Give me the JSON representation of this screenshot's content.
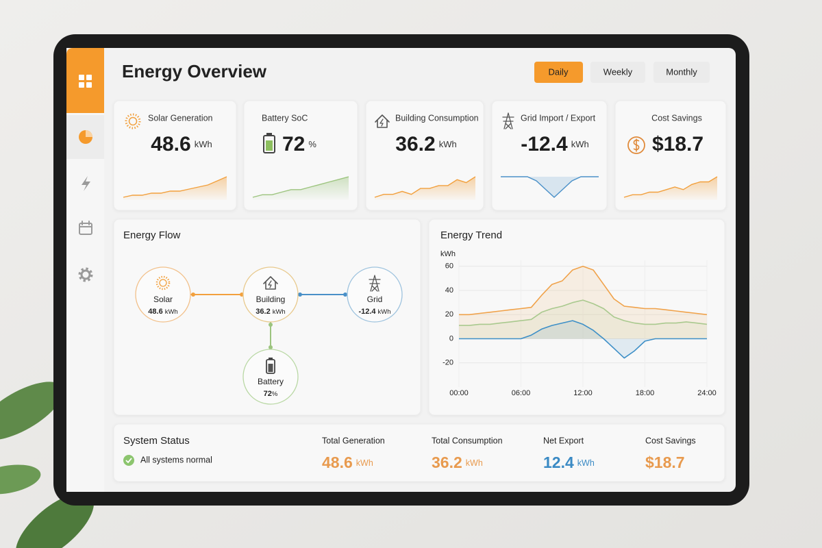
{
  "header": {
    "title": "Energy Overview",
    "tabs": [
      {
        "label": "Daily",
        "active": true
      },
      {
        "label": "Weekly",
        "active": false
      },
      {
        "label": "Monthly",
        "active": false
      }
    ]
  },
  "cards": [
    {
      "title": "Solar Generation",
      "value": "48.6",
      "unit": "kWh",
      "color": "#f2a03d",
      "trend": [
        3,
        4,
        4,
        5,
        5,
        6,
        6,
        7,
        8,
        9,
        11,
        13
      ]
    },
    {
      "title": "Battery SoC",
      "value": "72",
      "unit": "%",
      "color": "#9cc47e",
      "trend": [
        2,
        3,
        3,
        4,
        5,
        5,
        6,
        7,
        8,
        9,
        10
      ]
    },
    {
      "title": "Building Consumption",
      "value": "36.2",
      "unit": "kWh",
      "color": "#f2a03d",
      "trend": [
        2,
        3,
        3,
        4,
        3,
        5,
        5,
        6,
        6,
        8,
        7,
        9
      ]
    },
    {
      "title": "Grid Import / Export",
      "value": "-12.4",
      "unit": "kWh",
      "color": "#4a90c8",
      "trend": [
        0,
        0,
        0,
        0,
        -1,
        -3,
        -5,
        -3,
        -1,
        0,
        0,
        0
      ]
    },
    {
      "title": "Cost Savings",
      "value": "$18.7",
      "color": "#f2a03d",
      "trend": [
        2,
        3,
        3,
        4,
        4,
        5,
        6,
        5,
        7,
        8,
        8,
        10
      ]
    }
  ],
  "energy_flow": {
    "title": "Energy Flow",
    "nodes": [
      {
        "label": "Solar",
        "value": "48.6",
        "unit": "kWh",
        "color": "#f2c08a"
      },
      {
        "label": "Building",
        "value": "36.2",
        "unit": "kWh",
        "color": "#e8c98c"
      },
      {
        "label": "Grid",
        "value": "-12.4",
        "unit": "kWh",
        "color": "#9ec3de"
      },
      {
        "label": "Battery",
        "value": "72",
        "unit": "%",
        "color": "#b9d8a4"
      }
    ]
  },
  "energy_trend": {
    "type": "line",
    "title": "Energy Trend",
    "y_label": "kWh",
    "x": [
      0,
      1,
      2,
      3,
      4,
      5,
      6,
      7,
      8,
      9,
      10,
      11,
      12,
      13,
      14,
      15,
      16,
      17,
      18,
      19,
      20,
      21,
      22,
      23,
      24
    ],
    "xlim": [
      0,
      24
    ],
    "xticks": [
      {
        "value": 0,
        "label": "00:00"
      },
      {
        "value": 6,
        "label": "06:00"
      },
      {
        "value": 12,
        "label": "12:00"
      },
      {
        "value": 18,
        "label": "18:00"
      },
      {
        "value": 24,
        "label": "24:00"
      }
    ],
    "ylim": [
      -40,
      65
    ],
    "yticks": [
      -20,
      0,
      20,
      40,
      60
    ],
    "grid": true,
    "series": [
      {
        "color": "#f0a24a",
        "values": [
          20,
          20,
          21,
          22,
          23,
          24,
          25,
          26,
          36,
          45,
          48,
          57,
          60,
          57,
          45,
          33,
          27,
          26,
          25,
          25,
          24,
          23,
          22,
          21,
          20
        ]
      },
      {
        "color": "#a9c98e",
        "values": [
          11,
          11,
          12,
          12,
          13,
          14,
          15,
          16,
          22,
          25,
          27,
          30,
          32,
          29,
          25,
          18,
          15,
          13,
          12,
          12,
          13,
          13,
          14,
          13,
          12
        ]
      },
      {
        "color": "#3d8fc7",
        "values": [
          0,
          0,
          0,
          0,
          0,
          0,
          0,
          3,
          8,
          11,
          13,
          15,
          12,
          7,
          0,
          -8,
          -16,
          -10,
          -2,
          0,
          0,
          0,
          0,
          0,
          0
        ]
      }
    ]
  },
  "system_status": {
    "title": "System Status",
    "status": "All systems normal",
    "metrics": [
      {
        "label": "Total Generation",
        "value": "48.6",
        "unit": "kWh",
        "color": "#e89a4e"
      },
      {
        "label": "Total Consumption",
        "value": "36.2",
        "unit": "kWh",
        "color": "#e89a4e"
      },
      {
        "label": "Net Export",
        "value": "12.4",
        "unit": "kWh",
        "color": "#3a8ac4"
      },
      {
        "label": "Cost Savings",
        "value": "$18.7",
        "color": "#e89a4e"
      }
    ]
  }
}
